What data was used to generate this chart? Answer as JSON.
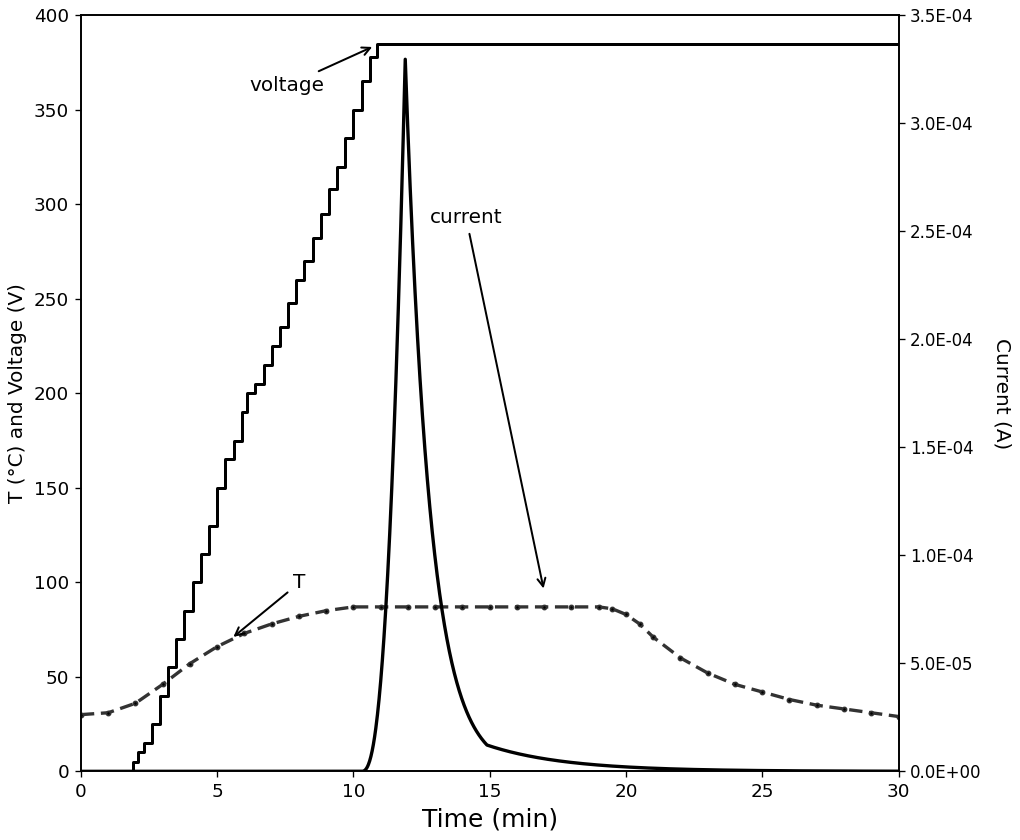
{
  "xlabel": "Time (min)",
  "ylabel_left": "T (°C) and Voltage (V)",
  "ylabel_right": "Current (A)",
  "xlim": [
    0,
    30
  ],
  "ylim_left": [
    0,
    400
  ],
  "ylim_right": [
    0,
    0.00035
  ],
  "voltage_color": "#000000",
  "temperature_color": "#333333",
  "current_color": "#000000",
  "voltage_label": "voltage",
  "temperature_label": "T",
  "current_label": "current",
  "right_yticks": [
    0.0,
    5e-05,
    0.0001,
    0.00015,
    0.0002,
    0.00025,
    0.0003,
    0.00035
  ],
  "right_yticklabels": [
    "0.0E+00",
    "5.0E-05",
    "1.0E-04",
    "1.5E-04",
    "2.0E-04",
    "2.5E-04",
    "3.0E-04",
    "3.5E-04"
  ],
  "left_yticks": [
    0,
    50,
    100,
    150,
    200,
    250,
    300,
    350,
    400
  ],
  "xticks": [
    0,
    5,
    10,
    15,
    20,
    25,
    30
  ],
  "figwidth": 8.5,
  "figheight": 7.0,
  "dpi": 120
}
